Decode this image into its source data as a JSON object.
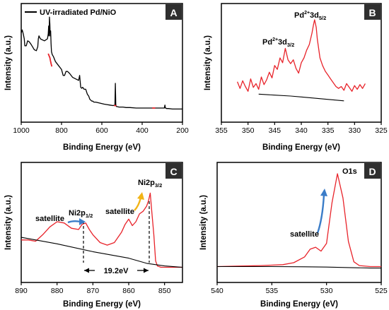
{
  "chart_data": [
    {
      "panel": "A",
      "type": "line",
      "xlabel": "Binding Energy (eV)",
      "ylabel": "Intensity (a.u.)",
      "xlim": [
        1000,
        200
      ],
      "xticks": [
        "1000",
        "800",
        "600",
        "400",
        "200"
      ],
      "legend": "UV-irradiated Pd/NiO",
      "legend_position": "top-left",
      "colors": {
        "data": "#000000",
        "fit": "#e8232a"
      },
      "series": [
        {
          "role": "data",
          "x": [
            1000,
            995,
            990,
            985,
            982,
            975,
            968,
            960,
            950,
            935,
            925,
            918,
            915,
            912,
            905,
            895,
            885,
            870,
            866,
            864,
            862,
            861,
            860,
            858,
            856,
            854,
            852,
            850,
            846,
            840,
            830,
            815,
            800,
            792,
            785,
            778,
            770,
            760,
            745,
            725,
            715,
            710,
            705,
            700,
            695,
            688,
            680,
            672,
            665,
            660,
            655,
            650,
            645,
            640,
            630,
            610,
            590,
            575,
            560,
            545,
            535,
            533,
            531,
            529,
            527,
            525,
            515,
            505,
            495,
            480,
            460,
            430,
            400,
            370,
            340,
            320,
            300,
            290,
            287,
            285,
            282,
            280,
            270,
            250,
            230,
            200
          ],
          "y": [
            81,
            84,
            80,
            75,
            68,
            68,
            73,
            72,
            69,
            64,
            63,
            67,
            75,
            78,
            75,
            74,
            73,
            75,
            80,
            88,
            78,
            83,
            97,
            90,
            78,
            83,
            70,
            62,
            59,
            57,
            52,
            48,
            44,
            38,
            38,
            42,
            42,
            40,
            36,
            34,
            33,
            38,
            26,
            25,
            26,
            24,
            24,
            19,
            17,
            14,
            13,
            12,
            12,
            11,
            11,
            10,
            9,
            8.5,
            8,
            7.5,
            8,
            30,
            9,
            7,
            6.5,
            6.5,
            6,
            6,
            6,
            5.5,
            5.5,
            5,
            5,
            5,
            5,
            5,
            5,
            5,
            8,
            5,
            5,
            4.5,
            4.5,
            4,
            4,
            4
          ]
        },
        {
          "role": "fit",
          "x": [
            866,
            862,
            858,
            855,
            852,
            848
          ],
          "y": [
            60,
            58,
            56,
            53,
            50,
            47
          ]
        },
        {
          "role": "fit",
          "x": [
            540,
            536,
            532,
            528
          ],
          "y": [
            7.5,
            7.5,
            7.5,
            7.5
          ]
        },
        {
          "role": "fit",
          "x": [
            350,
            345,
            340,
            335
          ],
          "y": [
            5,
            5,
            5,
            5
          ]
        }
      ]
    },
    {
      "panel": "B",
      "type": "line",
      "xlabel": "Binding Energy (eV)",
      "ylabel": "Intensity (a.u.)",
      "xlim": [
        355,
        325
      ],
      "xticks": [
        "355",
        "350",
        "345",
        "340",
        "335",
        "330",
        "325"
      ],
      "annotations": [
        "Pd²⁺3d₅/₂",
        "Pd²⁺3d₃/₂"
      ],
      "colors": {
        "data": "#e8232a",
        "baseline": "#000000"
      },
      "series": [
        {
          "role": "data",
          "x": [
            352,
            351.5,
            351,
            350.5,
            350,
            349.5,
            349,
            348.5,
            348,
            347.5,
            347,
            346.5,
            346,
            345.5,
            345,
            344.5,
            344,
            343.5,
            343,
            342.5,
            342,
            341.5,
            341,
            340.5,
            340,
            339.5,
            339,
            338.5,
            338,
            337.7,
            337.5,
            337.2,
            337,
            336.5,
            336,
            335.5,
            335,
            334.5,
            334,
            333.5,
            333,
            332.5,
            332,
            331.5,
            331,
            330.5,
            330,
            329.5,
            329,
            328.5,
            328
          ],
          "y": [
            35,
            28,
            36,
            30,
            25,
            38,
            29,
            33,
            27,
            40,
            32,
            37,
            45,
            39,
            52,
            48,
            60,
            55,
            70,
            58,
            54,
            58,
            49,
            44,
            55,
            60,
            68,
            74,
            86,
            95,
            100,
            92,
            80,
            60,
            52,
            46,
            42,
            38,
            34,
            30,
            28,
            30,
            26,
            33,
            29,
            25,
            31,
            27,
            32,
            28,
            33
          ]
        },
        {
          "role": "baseline",
          "x": [
            348,
            345,
            342,
            340,
            338,
            336,
            334,
            332
          ],
          "y": [
            22,
            21,
            20,
            19,
            18,
            17,
            16,
            15
          ]
        }
      ]
    },
    {
      "panel": "C",
      "type": "line",
      "xlabel": "Binding Energy (eV)",
      "ylabel": "Intensity (a.u.)",
      "xlim": [
        890,
        845
      ],
      "xticks": [
        "890",
        "880",
        "870",
        "860",
        "850"
      ],
      "annotations": [
        "satellite",
        "Ni2p1/2",
        "satellite",
        "Ni2p3/2",
        "19.2eV"
      ],
      "colors": {
        "data": "#e8232a",
        "baseline": "#000000",
        "arrow_blue": "#3b7dc8",
        "arrow_yellow": "#f2b416"
      },
      "series": [
        {
          "role": "data",
          "x": [
            890,
            888,
            886,
            884,
            882,
            880,
            878,
            876,
            874,
            873,
            872,
            871,
            870,
            868,
            866,
            864,
            862,
            861,
            860,
            859,
            858,
            857,
            856,
            855,
            854.5,
            854,
            853.5,
            853,
            852.5,
            852,
            851,
            850,
            848,
            846,
            845
          ],
          "y": [
            24,
            24,
            23,
            28,
            34,
            38,
            37,
            33,
            32,
            36,
            37,
            32,
            28,
            22,
            20,
            22,
            30,
            36,
            40,
            35,
            38,
            44,
            46,
            50,
            54,
            60,
            44,
            28,
            8,
            4,
            3,
            3,
            3,
            3,
            3
          ]
        },
        {
          "role": "baseline",
          "x": [
            890,
            880,
            870,
            860,
            855,
            850,
            845
          ],
          "y": [
            26,
            21,
            15,
            10,
            6,
            4,
            3
          ]
        }
      ]
    },
    {
      "panel": "D",
      "type": "line",
      "xlabel": "Binding Energy (eV)",
      "ylabel": "Intensity (a.u.)",
      "xlim": [
        540,
        525
      ],
      "xticks": [
        "540",
        "535",
        "530",
        "525"
      ],
      "annotations": [
        "O1s",
        "satellite"
      ],
      "colors": {
        "data": "#e8232a",
        "baseline": "#000000",
        "arrow_blue": "#3b7dc8"
      },
      "series": [
        {
          "role": "data",
          "x": [
            540,
            538,
            536,
            534,
            533,
            532,
            531.5,
            531,
            530.5,
            530,
            529.5,
            529,
            528.5,
            528,
            527.5,
            527,
            526,
            525
          ],
          "y": [
            4,
            4.5,
            5,
            6,
            8,
            14,
            22,
            24,
            20,
            28,
            70,
            100,
            75,
            30,
            9,
            5,
            4,
            4
          ]
        },
        {
          "role": "baseline",
          "x": [
            540,
            535,
            532,
            530,
            528,
            526,
            525
          ],
          "y": [
            4,
            4,
            3.8,
            3.5,
            3,
            2.5,
            2.5
          ]
        }
      ]
    }
  ]
}
